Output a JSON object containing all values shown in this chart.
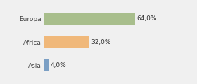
{
  "categories": [
    "Europa",
    "Africa",
    "Asia"
  ],
  "values": [
    64.0,
    32.0,
    4.0
  ],
  "labels": [
    "64,0%",
    "32,0%",
    "4,0%"
  ],
  "bar_colors": [
    "#a8be8c",
    "#f0b87a",
    "#7b9fc4"
  ],
  "background_color": "#f0f0f0",
  "xlim": [
    0,
    100
  ],
  "bar_height": 0.5,
  "label_fontsize": 6.5,
  "category_fontsize": 6.5
}
